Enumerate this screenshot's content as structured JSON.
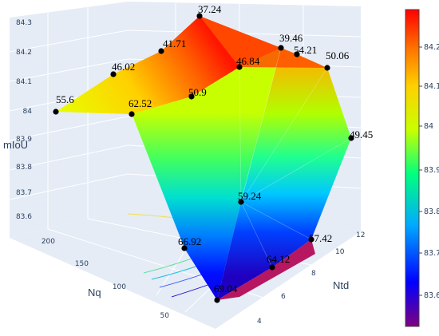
{
  "chart_data": {
    "type": "surface3d",
    "title": "",
    "axes": {
      "x": {
        "label": "Nq",
        "ticks": [
          "50",
          "100",
          "150",
          "200"
        ]
      },
      "y": {
        "label": "Ntd",
        "ticks": [
          "4",
          "6",
          "8",
          "10",
          "12"
        ]
      },
      "z": {
        "label": "mIoU",
        "ticks": [
          "83.6",
          "83.7",
          "83.8",
          "83.9",
          "84",
          "84.1",
          "84.2",
          "84.3"
        ]
      }
    },
    "colorscale": {
      "name": "rainbow",
      "stops": [
        "#800080",
        "#0000ff",
        "#00aaff",
        "#00ff80",
        "#c8ff00",
        "#ffd000",
        "#ff7000",
        "#ff0000"
      ],
      "ticks": [
        "83.6",
        "83.7",
        "83.8",
        "83.9",
        "84",
        "84.1",
        "84.2"
      ]
    },
    "points": [
      {
        "label": "37.24"
      },
      {
        "label": "41.71"
      },
      {
        "label": "46.02"
      },
      {
        "label": "55.6"
      },
      {
        "label": "39.46"
      },
      {
        "label": "54.21"
      },
      {
        "label": "46.84"
      },
      {
        "label": "50.9"
      },
      {
        "label": "62.52"
      },
      {
        "label": "50.06"
      },
      {
        "label": "49.45"
      },
      {
        "label": "59.24"
      },
      {
        "label": "66.92"
      },
      {
        "label": "57.42"
      },
      {
        "label": "64.12"
      },
      {
        "label": "69.04"
      }
    ]
  }
}
